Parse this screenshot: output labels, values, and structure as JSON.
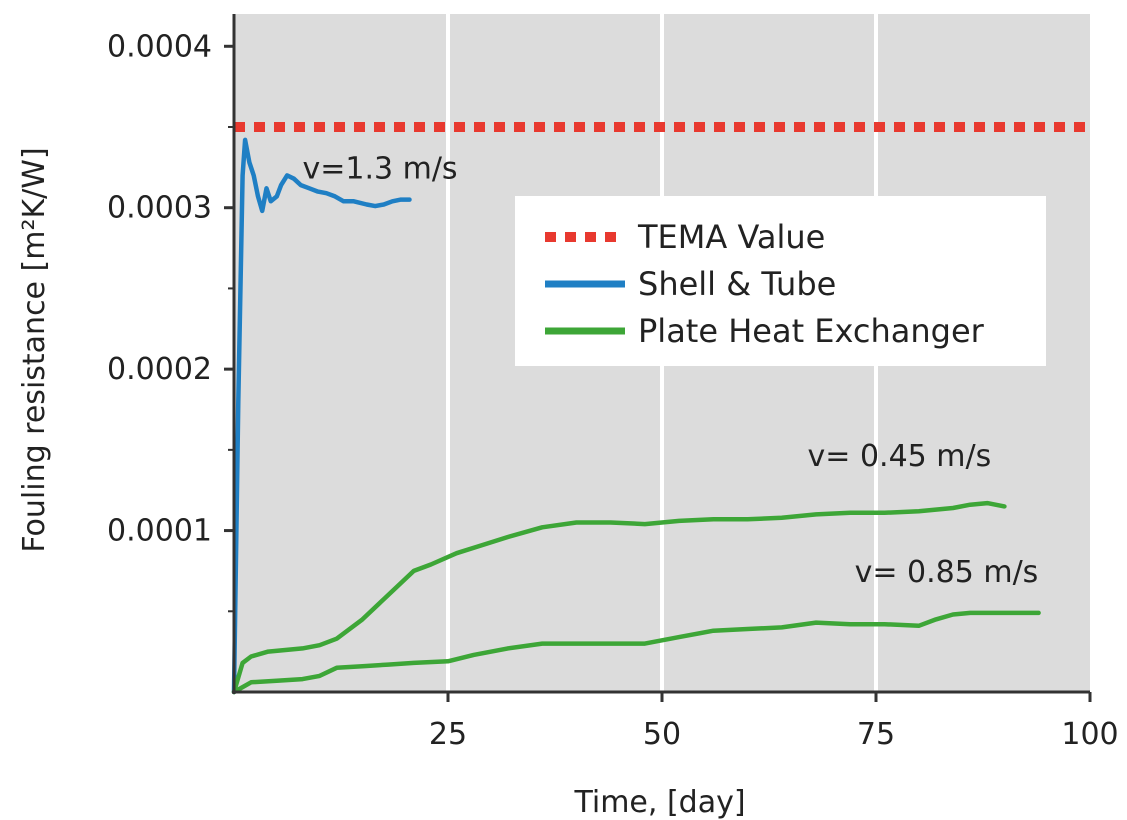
{
  "chart_data": {
    "type": "line",
    "xlabel": "Time, [day]",
    "ylabel": "Fouling resistance [m²K/W]",
    "xlim": [
      0,
      100
    ],
    "ylim": [
      0,
      0.00042
    ],
    "xticks": [
      25,
      50,
      75,
      100
    ],
    "yticks": [
      0.0001,
      0.0002,
      0.0003,
      0.0004
    ],
    "xtick_labels": [
      "25",
      "50",
      "75",
      "100"
    ],
    "ytick_labels": [
      "0.0001",
      "0.0002",
      "0.0003",
      "0.0004"
    ],
    "grid": "vertical",
    "background": "#dcdcdc",
    "legend_position": "upper-right",
    "legend": [
      {
        "label": "TEMA Value",
        "color": "#e8392f",
        "style": "dotted"
      },
      {
        "label": "Shell & Tube",
        "color": "#1f7fc4",
        "style": "solid"
      },
      {
        "label": "Plate Heat Exchanger",
        "color": "#3da637",
        "style": "solid"
      }
    ],
    "series": [
      {
        "name": "TEMA Value",
        "color": "#e8392f",
        "style": "dotted",
        "x": [
          0,
          100
        ],
        "y": [
          0.00035,
          0.00035
        ]
      },
      {
        "name": "Shell & Tube",
        "color": "#1f7fc4",
        "style": "solid",
        "x": [
          0,
          0.5,
          1.0,
          1.3,
          1.8,
          2.3,
          2.8,
          3.3,
          3.8,
          4.3,
          5.0,
          5.5,
          6.2,
          7.0,
          7.8,
          8.8,
          9.8,
          10.8,
          11.8,
          12.8,
          14.0,
          15.5,
          16.5,
          17.5,
          18.5,
          19.5,
          20.5
        ],
        "y": [
          0,
          0.00018,
          0.00032,
          0.000342,
          0.000328,
          0.00032,
          0.000307,
          0.000298,
          0.000312,
          0.000304,
          0.000307,
          0.000314,
          0.00032,
          0.000318,
          0.000314,
          0.000312,
          0.00031,
          0.000309,
          0.000307,
          0.000304,
          0.000304,
          0.000302,
          0.000301,
          0.000302,
          0.000304,
          0.000305,
          0.000305
        ]
      },
      {
        "name": "v= 0.45 m/s",
        "color": "#3da637",
        "style": "solid",
        "x": [
          0,
          1,
          2,
          4,
          6,
          8,
          10,
          12,
          15,
          18,
          21,
          23,
          26,
          29,
          32,
          36,
          40,
          44,
          48,
          52,
          56,
          60,
          64,
          68,
          72,
          76,
          80,
          84,
          86,
          88,
          90
        ],
        "y": [
          0,
          1.8e-05,
          2.2e-05,
          2.5e-05,
          2.6e-05,
          2.7e-05,
          2.9e-05,
          3.3e-05,
          4.5e-05,
          6e-05,
          7.5e-05,
          7.9e-05,
          8.6e-05,
          9.1e-05,
          9.6e-05,
          0.000102,
          0.000105,
          0.000105,
          0.000104,
          0.000106,
          0.000107,
          0.000107,
          0.000108,
          0.00011,
          0.000111,
          0.000111,
          0.000112,
          0.000114,
          0.000116,
          0.000117,
          0.000115
        ]
      },
      {
        "name": "v= 0.85 m/s",
        "color": "#3da637",
        "style": "solid",
        "x": [
          0,
          2,
          5,
          8,
          10,
          12,
          15,
          18,
          21,
          25,
          28,
          32,
          36,
          40,
          44,
          48,
          52,
          56,
          60,
          64,
          68,
          72,
          76,
          80,
          82,
          84,
          86,
          90,
          94
        ],
        "y": [
          0,
          6e-06,
          7e-06,
          8e-06,
          1e-05,
          1.5e-05,
          1.6e-05,
          1.7e-05,
          1.8e-05,
          1.9e-05,
          2.3e-05,
          2.7e-05,
          3e-05,
          3e-05,
          3e-05,
          3e-05,
          3.4e-05,
          3.8e-05,
          3.9e-05,
          4e-05,
          4.3e-05,
          4.2e-05,
          4.2e-05,
          4.1e-05,
          4.5e-05,
          4.8e-05,
          4.9e-05,
          4.9e-05,
          4.9e-05
        ]
      }
    ],
    "annotations": [
      {
        "text": "v=1.3 m/s",
        "x": 8.0,
        "y": 0.000318
      },
      {
        "text": "v= 0.45 m/s",
        "x": 67.0,
        "y": 0.00014
      },
      {
        "text": "v= 0.85 m/s",
        "x": 72.5,
        "y": 6.8e-05
      }
    ]
  }
}
